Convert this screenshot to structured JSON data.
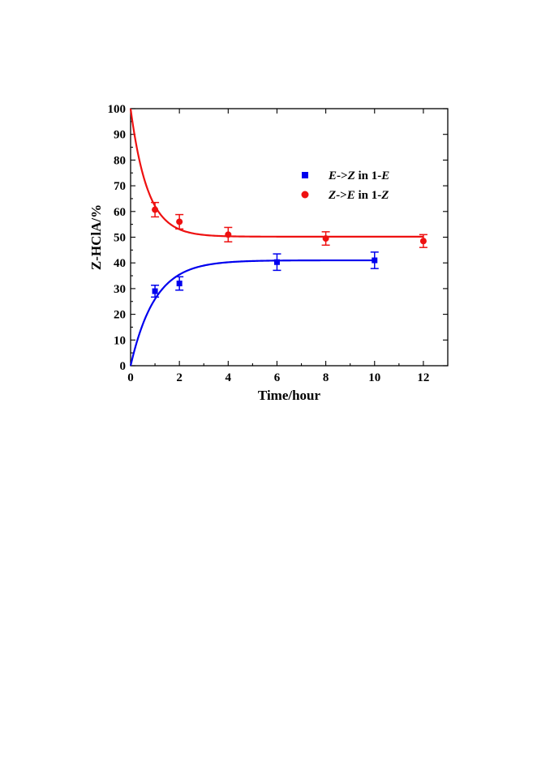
{
  "chart_data": {
    "type": "scatter",
    "xlabel": "Time/hour",
    "ylabel": "Z-HClA/%",
    "xlim": [
      0,
      13
    ],
    "ylim": [
      0,
      100
    ],
    "x_ticks": [
      0,
      2,
      4,
      6,
      8,
      10,
      12
    ],
    "y_ticks": [
      0,
      10,
      20,
      30,
      40,
      50,
      60,
      70,
      80,
      90,
      100
    ],
    "grid": false,
    "legend_position": "upper-right",
    "series": [
      {
        "name": "E->Z in 1-E",
        "name_parts": [
          {
            "text": "E",
            "italic": true
          },
          {
            "text": "->",
            "italic": false
          },
          {
            "text": "Z",
            "italic": true
          },
          {
            "text": " in 1-",
            "italic": false
          },
          {
            "text": "E",
            "italic": true
          }
        ],
        "color": "#0000ee",
        "marker": "square",
        "x": [
          1,
          2,
          6,
          10
        ],
        "y": [
          29,
          32,
          40.3,
          41
        ],
        "error": [
          2.3,
          2.6,
          3.2,
          3.2
        ],
        "fit": {
          "type": "exponential-rise",
          "start": 0,
          "plateau": 41,
          "tau": 1.0,
          "x_end": 10
        }
      },
      {
        "name": "Z->E in 1-Z",
        "name_parts": [
          {
            "text": "Z",
            "italic": true
          },
          {
            "text": "->",
            "italic": false
          },
          {
            "text": "E",
            "italic": true
          },
          {
            "text": " in 1-",
            "italic": false
          },
          {
            "text": "Z",
            "italic": true
          }
        ],
        "color": "#ee1111",
        "marker": "circle",
        "x": [
          1,
          2,
          4,
          8,
          12
        ],
        "y": [
          60.7,
          56,
          51,
          49.5,
          48.5
        ],
        "error": [
          2.8,
          2.8,
          2.8,
          2.6,
          2.5
        ],
        "fit": {
          "type": "exponential-decay",
          "start": 100,
          "plateau": 50.2,
          "tau": 0.7,
          "x_end": 12
        }
      }
    ]
  }
}
